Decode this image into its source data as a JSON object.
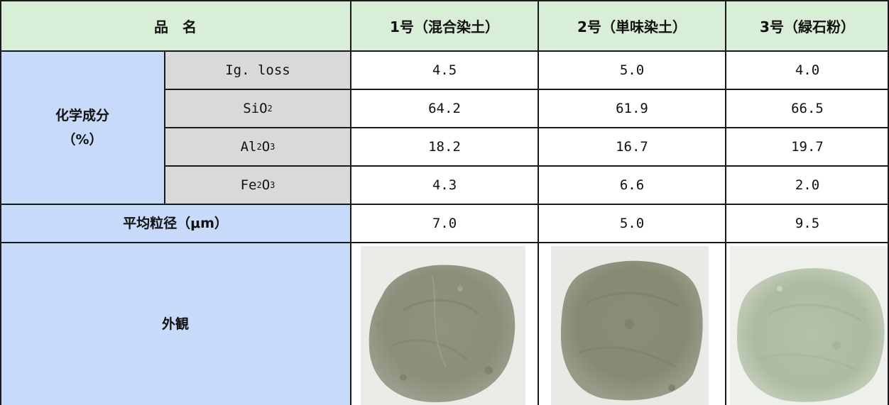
{
  "header": {
    "item_name": "品　名",
    "products": [
      "1号（混合染土）",
      "2号（単味染土）",
      "3号（緑石粉）"
    ]
  },
  "chemical": {
    "label_line1": "化学成分",
    "label_line2": "（%）",
    "rows": [
      {
        "name_main": "Ig. loss",
        "name_sub1": "",
        "name_mid": "",
        "name_sub2": "",
        "values": [
          "4.5",
          "5.0",
          "4.0"
        ]
      },
      {
        "name_main": "SiO",
        "name_sub1": "2",
        "name_mid": "",
        "name_sub2": "",
        "values": [
          "64.2",
          "61.9",
          "66.5"
        ]
      },
      {
        "name_main": "Al",
        "name_sub1": "2",
        "name_mid": "O",
        "name_sub2": "3",
        "values": [
          "18.2",
          "16.7",
          "19.7"
        ]
      },
      {
        "name_main": "Fe",
        "name_sub1": "2",
        "name_mid": "O",
        "name_sub2": "3",
        "values": [
          "4.3",
          "6.6",
          "2.0"
        ]
      }
    ]
  },
  "particle": {
    "label": "平均粒径（μm）",
    "values": [
      "7.0",
      "5.0",
      "9.5"
    ]
  },
  "appearance": {
    "label": "外観"
  },
  "colors": {
    "header_green": "#d9eed6",
    "label_blue": "#c7dafa",
    "name_gray": "#d9d9d9",
    "powder_1": "#8e947f",
    "powder_2": "#8b8e78",
    "powder_3": "#b4c2a8"
  }
}
